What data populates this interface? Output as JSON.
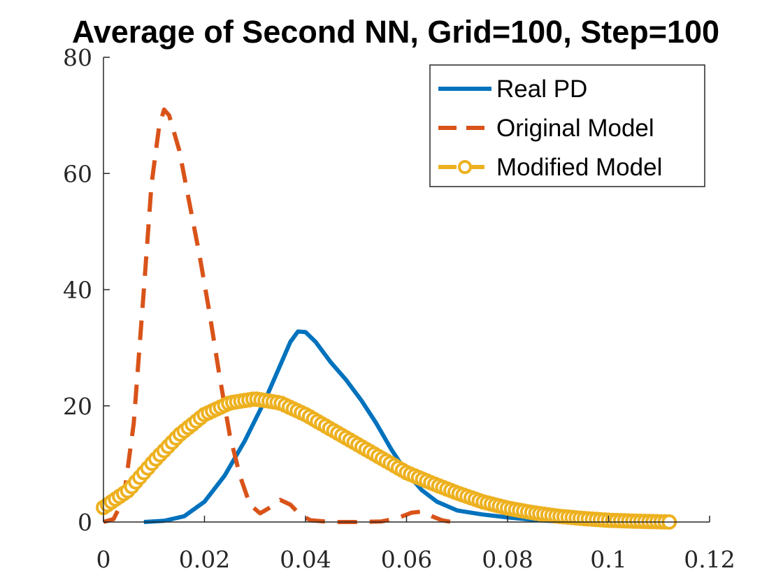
{
  "chart_data": {
    "type": "line",
    "title": "Average of Second NN, Grid=100, Step=100",
    "xlabel": "",
    "ylabel": "",
    "xlim": [
      0,
      0.12
    ],
    "ylim": [
      0,
      80
    ],
    "xticks": [
      "0",
      "0.02",
      "0.04",
      "0.06",
      "0.08",
      "0.1",
      "0.12"
    ],
    "yticks": [
      "0",
      "20",
      "40",
      "60",
      "80"
    ],
    "grid": false,
    "legend_position": "top-right",
    "series": [
      {
        "name": "Real PD",
        "style": "solid",
        "color": "#0072bd",
        "points": [
          [
            0.008,
            0
          ],
          [
            0.012,
            0.2
          ],
          [
            0.016,
            1
          ],
          [
            0.02,
            3.5
          ],
          [
            0.024,
            8
          ],
          [
            0.028,
            14
          ],
          [
            0.032,
            21
          ],
          [
            0.035,
            27
          ],
          [
            0.037,
            31
          ],
          [
            0.0385,
            32.8
          ],
          [
            0.04,
            32.7
          ],
          [
            0.042,
            31
          ],
          [
            0.045,
            27.5
          ],
          [
            0.048,
            24.5
          ],
          [
            0.051,
            21
          ],
          [
            0.054,
            17
          ],
          [
            0.057,
            12.5
          ],
          [
            0.06,
            8.5
          ],
          [
            0.063,
            5.5
          ],
          [
            0.066,
            3.5
          ],
          [
            0.07,
            2
          ],
          [
            0.075,
            1.3
          ],
          [
            0.08,
            0.8
          ],
          [
            0.085,
            0.4
          ],
          [
            0.09,
            0.1
          ],
          [
            0.095,
            0
          ]
        ]
      },
      {
        "name": "Original Model",
        "style": "dashed",
        "color": "#d95319",
        "points": [
          [
            0,
            0
          ],
          [
            0.002,
            0.5
          ],
          [
            0.004,
            4
          ],
          [
            0.006,
            17
          ],
          [
            0.008,
            40
          ],
          [
            0.0095,
            58
          ],
          [
            0.011,
            68
          ],
          [
            0.012,
            71
          ],
          [
            0.013,
            70
          ],
          [
            0.015,
            64
          ],
          [
            0.017,
            55
          ],
          [
            0.019,
            46
          ],
          [
            0.021,
            36
          ],
          [
            0.023,
            25
          ],
          [
            0.025,
            15
          ],
          [
            0.027,
            8
          ],
          [
            0.029,
            3
          ],
          [
            0.031,
            1.5
          ],
          [
            0.033,
            2.5
          ],
          [
            0.035,
            3.8
          ],
          [
            0.037,
            3
          ],
          [
            0.039,
            1.2
          ],
          [
            0.041,
            0.3
          ],
          [
            0.045,
            0
          ],
          [
            0.05,
            0
          ],
          [
            0.055,
            0.1
          ],
          [
            0.058,
            0.6
          ],
          [
            0.061,
            1.6
          ],
          [
            0.063,
            1.8
          ],
          [
            0.065,
            1
          ],
          [
            0.067,
            0.3
          ],
          [
            0.069,
            0
          ]
        ]
      },
      {
        "name": "Modified Model",
        "style": "dash-circle",
        "color": "#edb120",
        "points": [
          [
            0,
            2.5
          ],
          [
            0.005,
            5.5
          ],
          [
            0.01,
            10.5
          ],
          [
            0.015,
            15
          ],
          [
            0.02,
            18.5
          ],
          [
            0.025,
            20.5
          ],
          [
            0.03,
            21.2
          ],
          [
            0.035,
            20.5
          ],
          [
            0.04,
            18.5
          ],
          [
            0.045,
            16
          ],
          [
            0.05,
            13.5
          ],
          [
            0.055,
            11
          ],
          [
            0.06,
            8.5
          ],
          [
            0.065,
            6.7
          ],
          [
            0.07,
            5
          ],
          [
            0.075,
            3.5
          ],
          [
            0.08,
            2.4
          ],
          [
            0.085,
            1.6
          ],
          [
            0.09,
            1
          ],
          [
            0.095,
            0.6
          ],
          [
            0.1,
            0.3
          ],
          [
            0.105,
            0.15
          ],
          [
            0.11,
            0.05
          ],
          [
            0.112,
            0
          ]
        ]
      }
    ]
  }
}
